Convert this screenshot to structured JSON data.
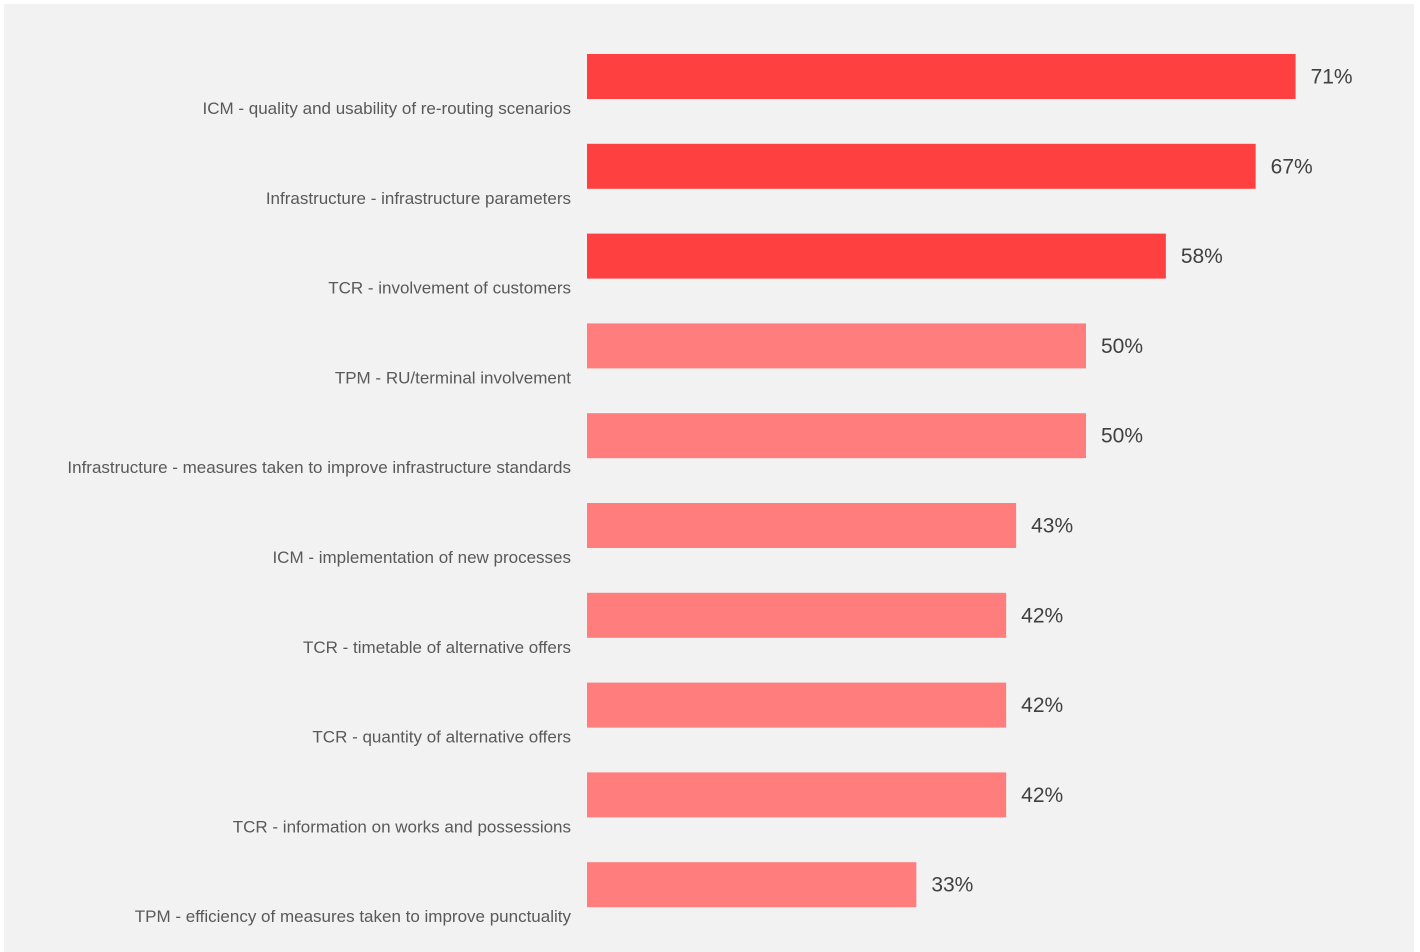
{
  "chart_data": {
    "type": "bar",
    "orientation": "horizontal",
    "title": "",
    "xlabel": "",
    "ylabel": "",
    "xlim": [
      0,
      100
    ],
    "grid": false,
    "value_suffix": "%",
    "categories": [
      "ICM - quality and usability of re-routing scenarios",
      "Infrastructure - infrastructure parameters",
      "TCR - involvement of customers",
      "TPM - RU/terminal involvement",
      "Infrastructure - measures taken to improve infrastructure standards",
      "ICM - implementation of new processes",
      "TCR - timetable of alternative offers",
      "TCR - quantity of alternative offers",
      "TCR - information on works and possessions",
      "TPM - efficiency of measures taken to improve punctuality"
    ],
    "values": [
      71,
      67,
      58,
      50,
      50,
      43,
      42,
      42,
      42,
      33
    ],
    "highlight_count": 3,
    "colors": {
      "highlight": "#ff4040",
      "normal": "#ff7d7d"
    }
  }
}
